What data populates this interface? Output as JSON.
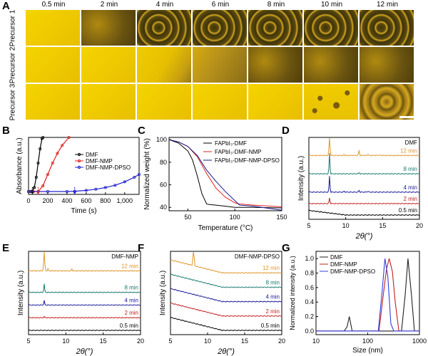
{
  "panel_labels": [
    "A",
    "B",
    "C",
    "D",
    "E",
    "F",
    "G"
  ],
  "panel_a": {
    "columns": [
      "0.5 min",
      "2 min",
      "4 min",
      "6 min",
      "8 min",
      "10 min",
      "12 min"
    ],
    "rows": [
      "Precursor 1",
      "Precursor 2",
      "Precursor 3"
    ],
    "states": [
      [
        "clear",
        "dense",
        "network",
        "network",
        "network",
        "network",
        "network"
      ],
      [
        "clear",
        "clear",
        "partial",
        "dense-partial",
        "dense",
        "dense",
        "dense"
      ],
      [
        "clear",
        "clear",
        "clear",
        "clear",
        "clear",
        "islands",
        "coarse"
      ]
    ],
    "scale_bar": true
  },
  "chart_data": [
    {
      "id": "B",
      "type": "line",
      "xlabel": "Time (s)",
      "ylabel": "Absorbance (a.u.)",
      "xlim": [
        0,
        1150
      ],
      "xticks": [
        0,
        200,
        400,
        600,
        800,
        "1,000"
      ],
      "xtick_values": [
        0,
        200,
        400,
        600,
        800,
        1000
      ],
      "legend": [
        "DMF",
        "DMF-NMP",
        "DMF-NMP-DPSO"
      ],
      "legend_position": "top-right",
      "series": [
        {
          "name": "DMF",
          "color": "#000000",
          "onset": 40,
          "x": [
            0,
            20,
            40,
            60,
            80,
            100,
            120,
            140,
            150
          ],
          "y": [
            0.05,
            0.05,
            0.06,
            0.12,
            0.3,
            0.55,
            0.8,
            0.98,
            1.0
          ]
        },
        {
          "name": "DMF-NMP",
          "color": "#e02020",
          "onset": 100,
          "x": [
            0,
            50,
            100,
            150,
            200,
            250,
            300,
            350,
            420
          ],
          "y": [
            0.05,
            0.05,
            0.05,
            0.15,
            0.35,
            0.55,
            0.72,
            0.86,
            1.0
          ]
        },
        {
          "name": "DMF-NMP-DPSO",
          "color": "#2020d0",
          "onset": 480,
          "x": [
            0,
            200,
            400,
            480,
            600,
            700,
            800,
            900,
            1000,
            1100,
            1150
          ],
          "y": [
            0.05,
            0.05,
            0.05,
            0.055,
            0.07,
            0.09,
            0.12,
            0.16,
            0.22,
            0.3,
            0.35
          ]
        }
      ],
      "arrows": [
        {
          "x": 40,
          "color": "#000000"
        },
        {
          "x": 100,
          "color": "#e02020"
        },
        {
          "x": 480,
          "color": "#2020d0"
        }
      ]
    },
    {
      "id": "C",
      "type": "line",
      "xlabel": "Temperature (°C)",
      "ylabel": "Normalized weight (%)",
      "xlim": [
        30,
        150
      ],
      "ylim": [
        37,
        102
      ],
      "xticks": [
        50,
        100,
        150
      ],
      "yticks": [
        40,
        60,
        80,
        100
      ],
      "legend": [
        "FAPbI₃-DMF",
        "FAPbI₃-DMF-NMP",
        "FAPbI₃-DMF-NMP-DPSO"
      ],
      "legend_position": "top-right",
      "series": [
        {
          "name": "FAPbI3-DMF",
          "color": "#000000",
          "x": [
            30,
            40,
            50,
            55,
            60,
            65,
            70,
            73,
            80,
            90,
            100,
            120,
            150
          ],
          "y": [
            100,
            97,
            90,
            82,
            68,
            52,
            43,
            42.5,
            42,
            41,
            40,
            40,
            39.5
          ]
        },
        {
          "name": "FAPbI3-DMF-NMP",
          "color": "#e02020",
          "x": [
            30,
            40,
            50,
            60,
            70,
            80,
            90,
            100,
            105,
            120,
            150
          ],
          "y": [
            100,
            98,
            94,
            85,
            70,
            57,
            49,
            44,
            43,
            42,
            40.5
          ]
        },
        {
          "name": "FAPbI3-DMF-NMP-DPSO",
          "color": "#1a1a8c",
          "x": [
            30,
            40,
            50,
            60,
            70,
            80,
            90,
            100,
            105,
            120,
            150
          ],
          "y": [
            100,
            98,
            94,
            86,
            73,
            63,
            54,
            46,
            42,
            41,
            37.5
          ]
        }
      ]
    },
    {
      "id": "D",
      "type": "line",
      "title": "DMF",
      "xlabel": "2θ(°)",
      "ylabel": "Intensity (a.u.)",
      "xlim": [
        5,
        20
      ],
      "xticks": [
        5,
        10,
        15,
        20
      ],
      "series": [
        {
          "name": "0.5 min",
          "color": "#000000",
          "offset": 0,
          "peaks": [],
          "baseline_slope": true
        },
        {
          "name": "2 min",
          "color": "#c02020",
          "offset": 1,
          "peaks": [
            {
              "x": 7.8,
              "h": 0.5
            }
          ]
        },
        {
          "name": "4 min",
          "color": "#1a1a9c",
          "offset": 2,
          "peaks": [
            {
              "x": 7.8,
              "h": 1.4
            },
            {
              "x": 11.8,
              "h": 0.15
            },
            {
              "x": 9.8,
              "h": 0.08
            },
            {
              "x": 13,
              "h": 0.08
            }
          ]
        },
        {
          "name": "8 min",
          "color": "#1a7a70",
          "offset": 3.6,
          "peaks": [
            {
              "x": 7.8,
              "h": 1.8
            },
            {
              "x": 11.8,
              "h": 0.1
            }
          ]
        },
        {
          "name": "12 min",
          "color": "#e0962a",
          "offset": 5.2,
          "peaks": [
            {
              "x": 7.8,
              "h": 2.4
            },
            {
              "x": 11.8,
              "h": 0.45
            },
            {
              "x": 9.8,
              "h": 0.08
            },
            {
              "x": 13,
              "h": 0.12
            },
            {
              "x": 14.5,
              "h": 0.06
            }
          ]
        }
      ]
    },
    {
      "id": "E",
      "type": "line",
      "title": "DMF-NMP",
      "xlabel": "2θ(°)",
      "ylabel": "Intensity (a.u.)",
      "xlim": [
        5,
        20
      ],
      "xticks": [
        5,
        10,
        15,
        20
      ],
      "series": [
        {
          "name": "0.5 min",
          "color": "#000000",
          "offset": 0,
          "peaks": []
        },
        {
          "name": "2 min",
          "color": "#c02020",
          "offset": 1,
          "peaks": [
            {
              "x": 7.1,
              "h": 0.08
            }
          ]
        },
        {
          "name": "4 min",
          "color": "#1a1a9c",
          "offset": 2,
          "peaks": [
            {
              "x": 7.1,
              "h": 0.35
            }
          ]
        },
        {
          "name": "8 min",
          "color": "#1a7a70",
          "offset": 3,
          "peaks": [
            {
              "x": 7.1,
              "h": 0.65
            }
          ]
        },
        {
          "name": "12 min",
          "color": "#e0962a",
          "offset": 4.7,
          "peaks": [
            {
              "x": 7.1,
              "h": 2.3
            },
            {
              "x": 7.6,
              "h": 0.15
            },
            {
              "x": 10.8,
              "h": 0.15
            }
          ]
        }
      ]
    },
    {
      "id": "F",
      "type": "line",
      "title": "DMF-NMP-DPSO",
      "xlabel": "2θ(°)",
      "ylabel": "Intensity (a.u.)",
      "xlim": [
        5,
        20
      ],
      "xticks": [
        5,
        10,
        15,
        20
      ],
      "series": [
        {
          "name": "0.5 min",
          "color": "#000000",
          "offset": 0,
          "peaks": []
        },
        {
          "name": "2 min",
          "color": "#c02020",
          "offset": 1,
          "peaks": []
        },
        {
          "name": "4 min",
          "color": "#1a1a9c",
          "offset": 2,
          "peaks": []
        },
        {
          "name": "8 min",
          "color": "#1a7a70",
          "offset": 3,
          "peaks": []
        },
        {
          "name": "12 min",
          "color": "#e0962a",
          "offset": 4,
          "peaks": [
            {
              "x": 8.1,
              "h": 2.6
            }
          ]
        }
      ]
    },
    {
      "id": "G",
      "type": "line",
      "xlabel": "Size (nm)",
      "ylabel": "Normalized intensity (a.u.)",
      "xscale": "log",
      "xlim": [
        10,
        1000
      ],
      "ylim": [
        -0.05,
        1.1
      ],
      "xticks": [
        10,
        100,
        1000
      ],
      "yticks": [
        "0.0",
        "0.2",
        "0.4",
        "0.6",
        "0.8",
        "1.0"
      ],
      "ytick_values": [
        0,
        0.2,
        0.4,
        0.6,
        0.8,
        1.0
      ],
      "legend": [
        "DMF",
        "DMF-NMP",
        "DMF-NMP-DPSO"
      ],
      "legend_position": "top-left",
      "series": [
        {
          "name": "DMF",
          "color": "#222222",
          "x": [
            10,
            35,
            40,
            44,
            50,
            450,
            530,
            600,
            700,
            800,
            1000
          ],
          "y": [
            0,
            0,
            0.06,
            0.2,
            0,
            0,
            0.5,
            1.0,
            0.5,
            0,
            0
          ]
        },
        {
          "name": "DMF-NMP",
          "color": "#c02020",
          "x": [
            10,
            165,
            200,
            230,
            260,
            300,
            340,
            400,
            1000
          ],
          "y": [
            0,
            0,
            0.5,
            0.85,
            1.0,
            0.82,
            0.4,
            0,
            0
          ]
        },
        {
          "name": "DMF-NMP-DPSO",
          "color": "#3040e0",
          "x": [
            10,
            160,
            190,
            215,
            245,
            280,
            320,
            1000
          ],
          "y": [
            0,
            0,
            0.55,
            1.0,
            0.75,
            0.1,
            0,
            0
          ]
        }
      ]
    }
  ]
}
